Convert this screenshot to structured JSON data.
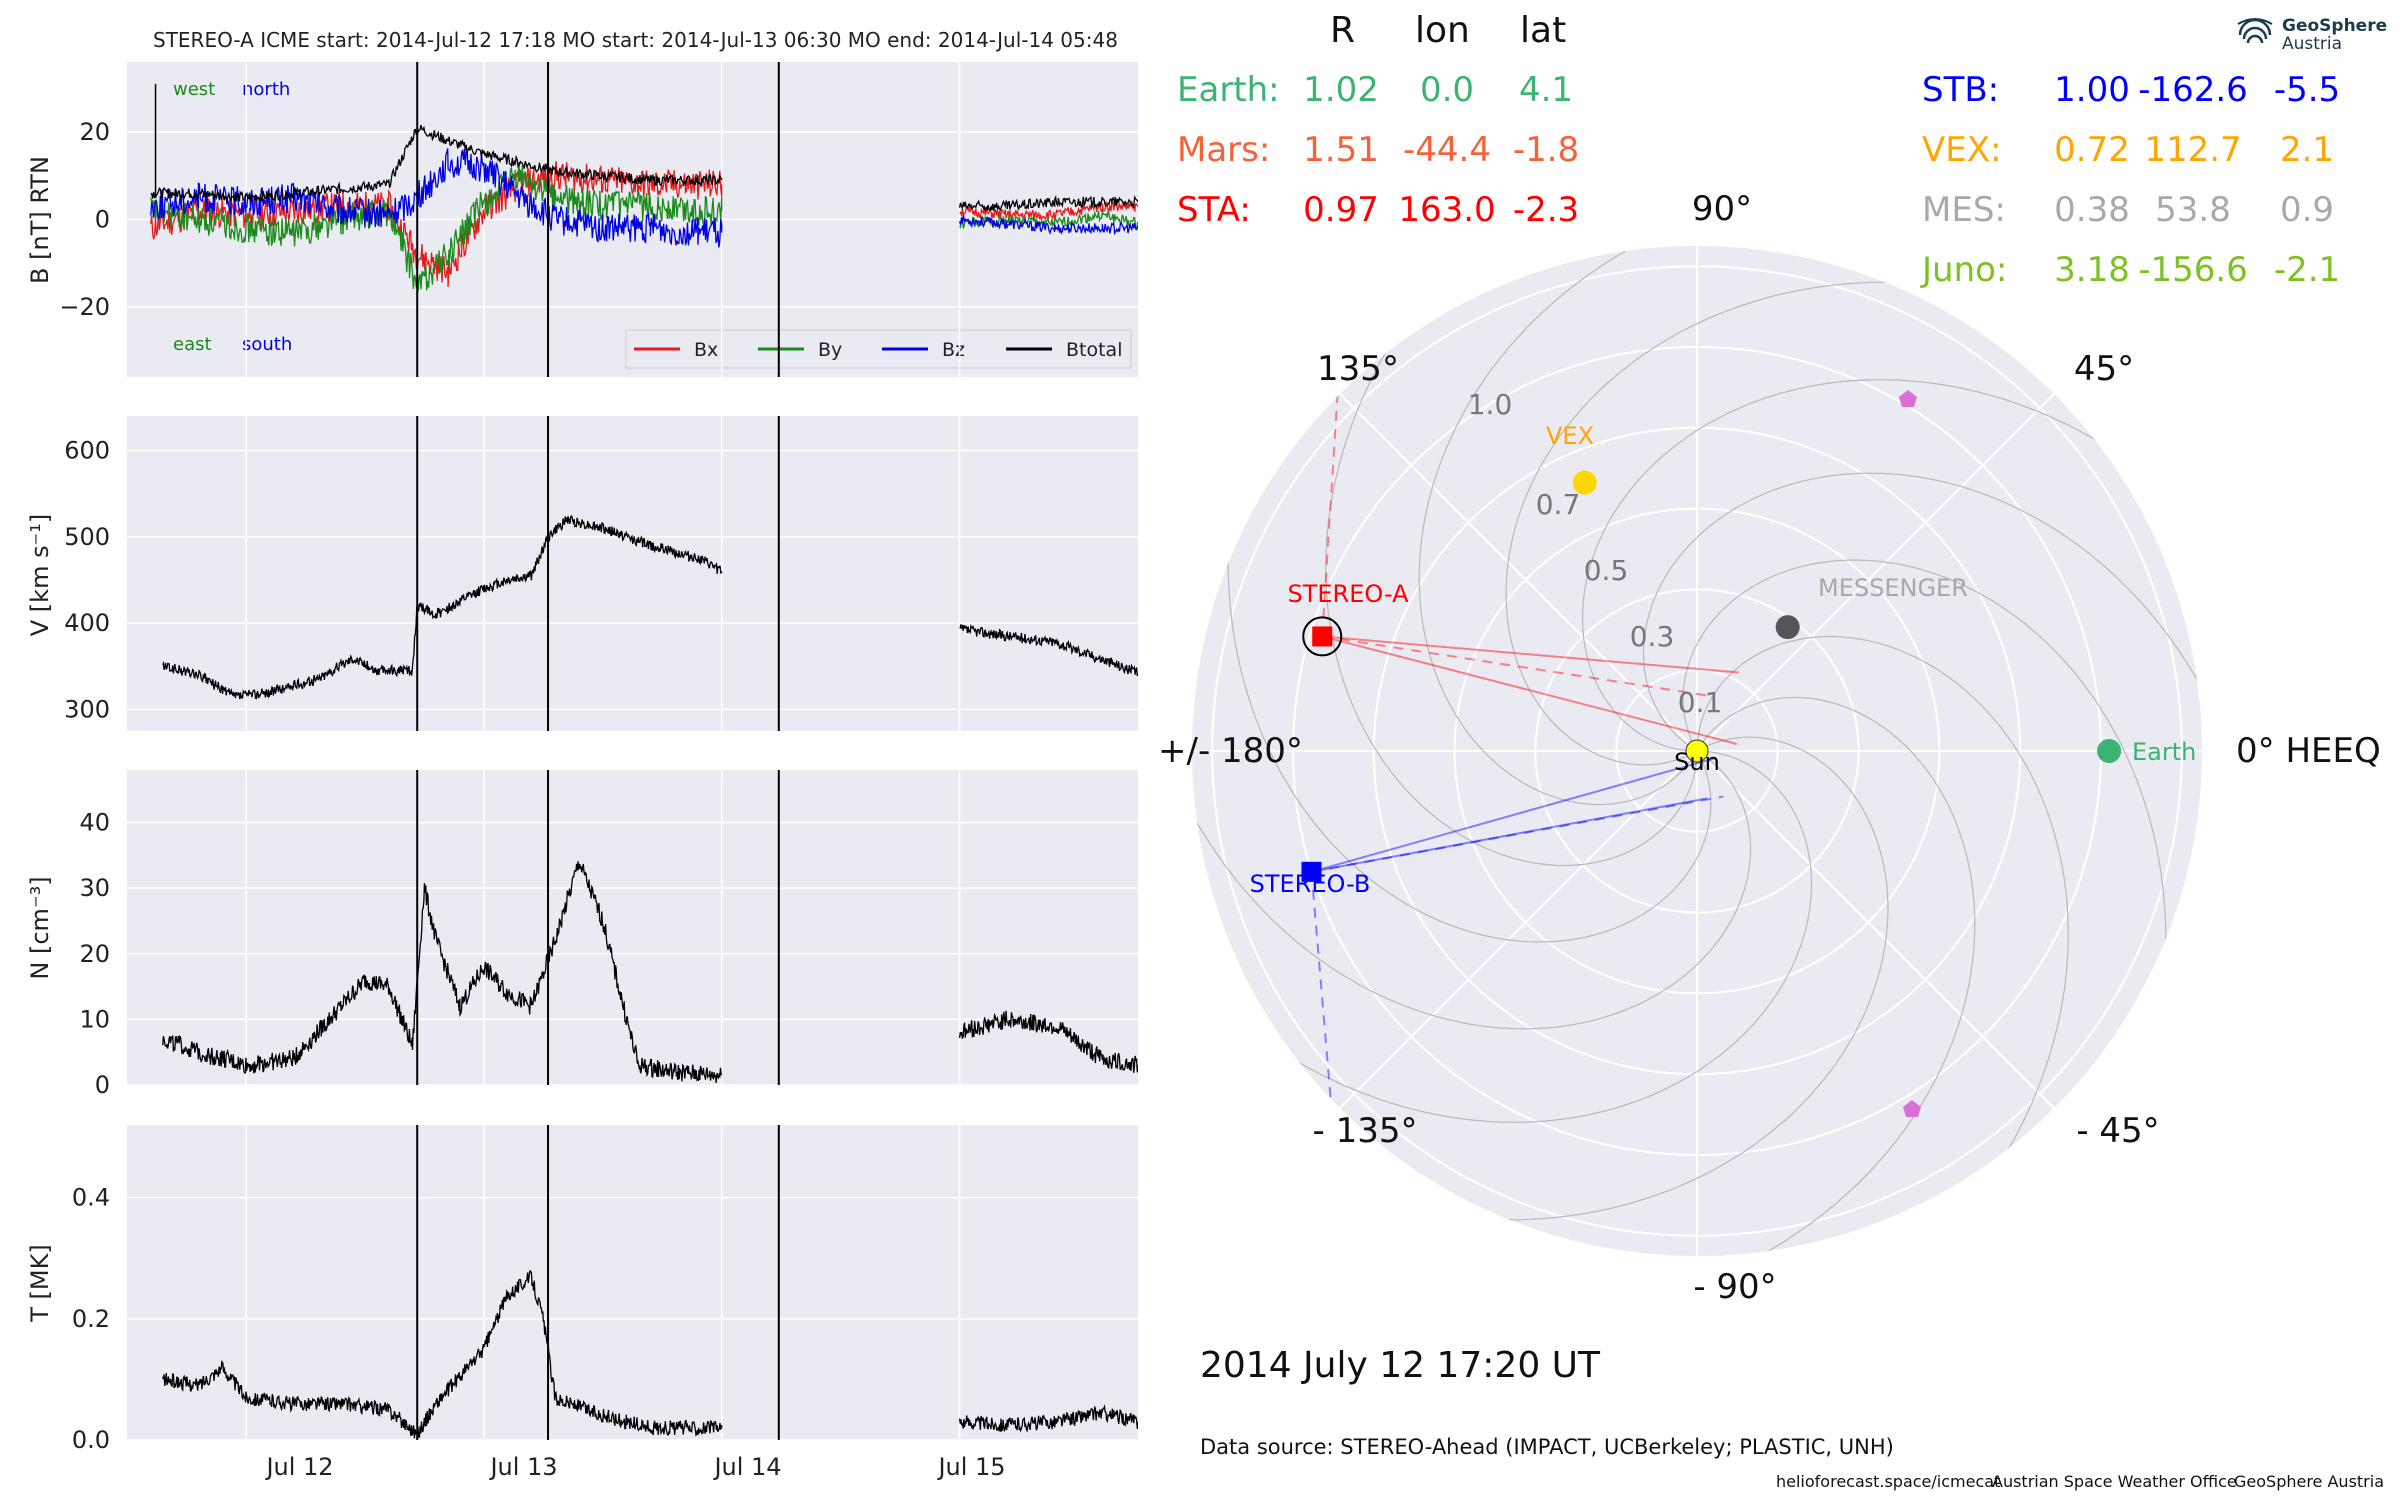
{
  "header": {
    "title": "STEREO-A    ICME start: 2014-Jul-12 17:18    MO start: 2014-Jul-13 06:30    MO end: 2014-Jul-14 05:48"
  },
  "logo": {
    "line1": "GeoSphere",
    "line2": "Austria"
  },
  "panels": {
    "b": {
      "ylabel": "B [nT] RTN",
      "yticks": [
        "20",
        "0",
        "−20"
      ],
      "corner_labels": {
        "west": "west",
        "north": "north",
        "east": "east",
        "south": "south"
      },
      "legend": [
        "Bx",
        "By",
        "Bz",
        "Btotal"
      ]
    },
    "v": {
      "ylabel": "V [km s⁻¹]",
      "yticks": [
        "600",
        "500",
        "400",
        "300"
      ]
    },
    "n": {
      "ylabel": "N [cm⁻³]",
      "yticks": [
        "40",
        "30",
        "20",
        "10",
        "0"
      ]
    },
    "t": {
      "ylabel": "T [MK]",
      "yticks": [
        "0.4",
        "0.2",
        "0.0"
      ]
    },
    "xticks": [
      "Jul 12",
      "Jul 13",
      "Jul 14",
      "Jul 15"
    ]
  },
  "positions": {
    "headers": [
      "R",
      "lon",
      "lat"
    ],
    "rows_left": [
      {
        "name": "Earth:",
        "R": "1.02",
        "lon": "0.0",
        "lat": "4.1",
        "color": "#3cb371"
      },
      {
        "name": "Mars:",
        "R": "1.51",
        "lon": "-44.4",
        "lat": "-1.8",
        "color": "#f4623a"
      },
      {
        "name": "STA:",
        "R": "0.97",
        "lon": "163.0",
        "lat": "-2.3",
        "color": "#ff0000"
      }
    ],
    "rows_right": [
      {
        "name": "STB:",
        "R": "1.00",
        "lon": "-162.6",
        "lat": "-5.5",
        "color": "#0000ff"
      },
      {
        "name": "VEX:",
        "R": "0.72",
        "lon": "112.7",
        "lat": "2.1",
        "color": "#ffa500"
      },
      {
        "name": "MES:",
        "R": "0.38",
        "lon": "53.8",
        "lat": "0.9",
        "color": "#a9a9a9"
      },
      {
        "name": "Juno:",
        "R": "3.18",
        "lon": "-156.6",
        "lat": "-2.1",
        "color": "#7ec125"
      }
    ]
  },
  "polar": {
    "angle_labels": {
      "a90": "90°",
      "a45": "45°",
      "a0": "0° HEEQ",
      "am45": "- 45°",
      "am90": "- 90°",
      "am135": "- 135°",
      "a180": "+/- 180°",
      "a135": "135°"
    },
    "r_labels": [
      "1.0",
      "0.7",
      "0.5",
      "0.3",
      "0.1"
    ],
    "bodies": {
      "sun": "Sun",
      "earth": "Earth",
      "vex": "VEX",
      "messenger": "MESSENGER",
      "stereo_a": "STEREO-A",
      "stereo_b": "STEREO-B"
    }
  },
  "time_label": "2014 July 12  17:20 UT",
  "data_source": "Data source: STEREO-Ahead (IMPACT, UCBerkeley; PLASTIC, UNH)",
  "footer": {
    "site": "helioforecast.space/icmecat",
    "office": "Austrian Space Weather Office",
    "org": "GeoSphere Austria"
  },
  "chart_data": [
    {
      "type": "line",
      "title": "STEREO-A    ICME start: 2014-Jul-12 17:18    MO start: 2014-Jul-13 06:30    MO end: 2014-Jul-14 05:48",
      "ylabel": "B [nT] RTN",
      "ylim": [
        -36,
        36
      ],
      "x_unit": "days since 2014-07-11 00:00",
      "xlim": [
        11.5,
        15.75
      ],
      "series": [
        {
          "name": "Bx",
          "color": "#e41a1c",
          "x": [
            11.6,
            11.8,
            12.0,
            12.2,
            12.4,
            12.6,
            12.72,
            12.85,
            13.0,
            13.15,
            13.3,
            13.5,
            13.7,
            13.9,
            14.0
          ],
          "y": [
            -2,
            2,
            1,
            2,
            3,
            3,
            -8,
            -12,
            2,
            8,
            10,
            9,
            8,
            8,
            8
          ]
        },
        {
          "name": "By",
          "color": "#1a8a1a",
          "x": [
            11.6,
            11.8,
            12.0,
            12.2,
            12.4,
            12.6,
            12.72,
            12.85,
            13.0,
            13.15,
            13.3,
            13.5,
            13.7,
            13.9,
            14.0
          ],
          "y": [
            2,
            0,
            -2,
            -3,
            0,
            2,
            -15,
            -8,
            4,
            10,
            5,
            3,
            3,
            2,
            2
          ]
        },
        {
          "name": "Bz",
          "color": "#0000e0",
          "x": [
            11.6,
            11.8,
            12.0,
            12.2,
            12.4,
            12.6,
            12.72,
            12.85,
            13.0,
            13.15,
            13.3,
            13.5,
            13.7,
            13.9,
            14.0
          ],
          "y": [
            3,
            5,
            4,
            5,
            2,
            1,
            5,
            13,
            12,
            5,
            0,
            -2,
            -2,
            -3,
            -3
          ]
        },
        {
          "name": "Btotal",
          "color": "#000000",
          "x": [
            11.6,
            11.8,
            12.0,
            12.2,
            12.4,
            12.6,
            12.72,
            12.85,
            13.0,
            13.15,
            13.3,
            13.5,
            13.7,
            13.9,
            14.0
          ],
          "y": [
            6,
            6,
            5,
            6,
            7,
            8,
            21,
            18,
            15,
            13,
            11,
            10,
            9,
            9,
            9
          ]
        }
      ],
      "series_after_gap": {
        "x": [
          15.0,
          15.2,
          15.4,
          15.6,
          15.75
        ],
        "Bx": [
          2,
          1,
          1,
          3,
          3
        ],
        "By": [
          -1,
          0,
          -1,
          1,
          -1
        ],
        "Bz": [
          0,
          -1,
          -2,
          -2,
          -2
        ],
        "Btotal": [
          3,
          3,
          4,
          4,
          4
        ]
      },
      "vlines_x": [
        12.72,
        13.27,
        14.24
      ],
      "legend": "lower right"
    },
    {
      "type": "line",
      "ylabel": "V [km s⁻¹]",
      "ylim": [
        275,
        640
      ],
      "series": [
        {
          "name": "",
          "x": [
            11.65,
            11.8,
            11.95,
            12.1,
            12.3,
            12.45,
            12.55,
            12.7,
            12.72,
            12.8,
            12.9,
            13.0,
            13.1,
            13.2,
            13.27,
            13.35,
            13.5,
            13.7,
            13.9,
            14.0
          ],
          "y": [
            350,
            340,
            315,
            320,
            335,
            360,
            345,
            345,
            420,
            410,
            425,
            440,
            450,
            455,
            500,
            520,
            510,
            490,
            475,
            460
          ]
        },
        {
          "name": "",
          "x": [
            15.0,
            15.2,
            15.4,
            15.6,
            15.75
          ],
          "y": [
            393,
            385,
            378,
            358,
            342
          ]
        }
      ]
    },
    {
      "type": "line",
      "ylabel": "N [cm⁻³]",
      "ylim": [
        0,
        48
      ],
      "series": [
        {
          "name": "",
          "x": [
            11.65,
            11.8,
            12.0,
            12.2,
            12.4,
            12.5,
            12.6,
            12.7,
            12.75,
            12.8,
            12.9,
            13.0,
            13.1,
            13.2,
            13.3,
            13.4,
            13.5,
            13.6,
            13.65,
            13.8,
            14.0
          ],
          "y": [
            7,
            5,
            3,
            4,
            12,
            16,
            15,
            6,
            30,
            22,
            12,
            18,
            14,
            12,
            22,
            34,
            25,
            10,
            3,
            2,
            1.5
          ]
        },
        {
          "name": "",
          "x": [
            15.0,
            15.2,
            15.4,
            15.6,
            15.75
          ],
          "y": [
            8,
            10,
            9,
            4,
            3
          ]
        }
      ]
    },
    {
      "type": "line",
      "ylabel": "T [MK]",
      "ylim": [
        0,
        0.52
      ],
      "series": [
        {
          "name": "",
          "x": [
            11.65,
            11.8,
            11.9,
            12.0,
            12.2,
            12.4,
            12.6,
            12.72,
            12.8,
            13.0,
            13.1,
            13.2,
            13.25,
            13.3,
            13.5,
            13.7,
            13.9,
            14.0
          ],
          "y": [
            0.1,
            0.09,
            0.12,
            0.07,
            0.06,
            0.06,
            0.05,
            0.01,
            0.06,
            0.15,
            0.24,
            0.27,
            0.2,
            0.07,
            0.04,
            0.02,
            0.02,
            0.02
          ]
        },
        {
          "name": "",
          "x": [
            15.0,
            15.2,
            15.4,
            15.6,
            15.75
          ],
          "y": [
            0.03,
            0.025,
            0.03,
            0.045,
            0.03
          ]
        }
      ]
    },
    {
      "type": "scatter",
      "projection": "polar",
      "theta_unit": "degrees HEEQ longitude",
      "r_unit": "AU",
      "points": [
        {
          "name": "Sun",
          "r": 0.0,
          "theta": 0,
          "color": "#ffff00"
        },
        {
          "name": "Earth",
          "r": 1.02,
          "theta": 0.0,
          "color": "#3cb371"
        },
        {
          "name": "VEX",
          "r": 0.72,
          "theta": 112.7,
          "color": "#ffd700"
        },
        {
          "name": "MESSENGER",
          "r": 0.38,
          "theta": 53.8,
          "color": "#555555"
        },
        {
          "name": "STEREO-A",
          "r": 0.97,
          "theta": 163.0,
          "color": "#ff0000"
        },
        {
          "name": "STEREO-B",
          "r": 1.0,
          "theta": -162.6,
          "color": "#0000ff"
        }
      ]
    }
  ]
}
